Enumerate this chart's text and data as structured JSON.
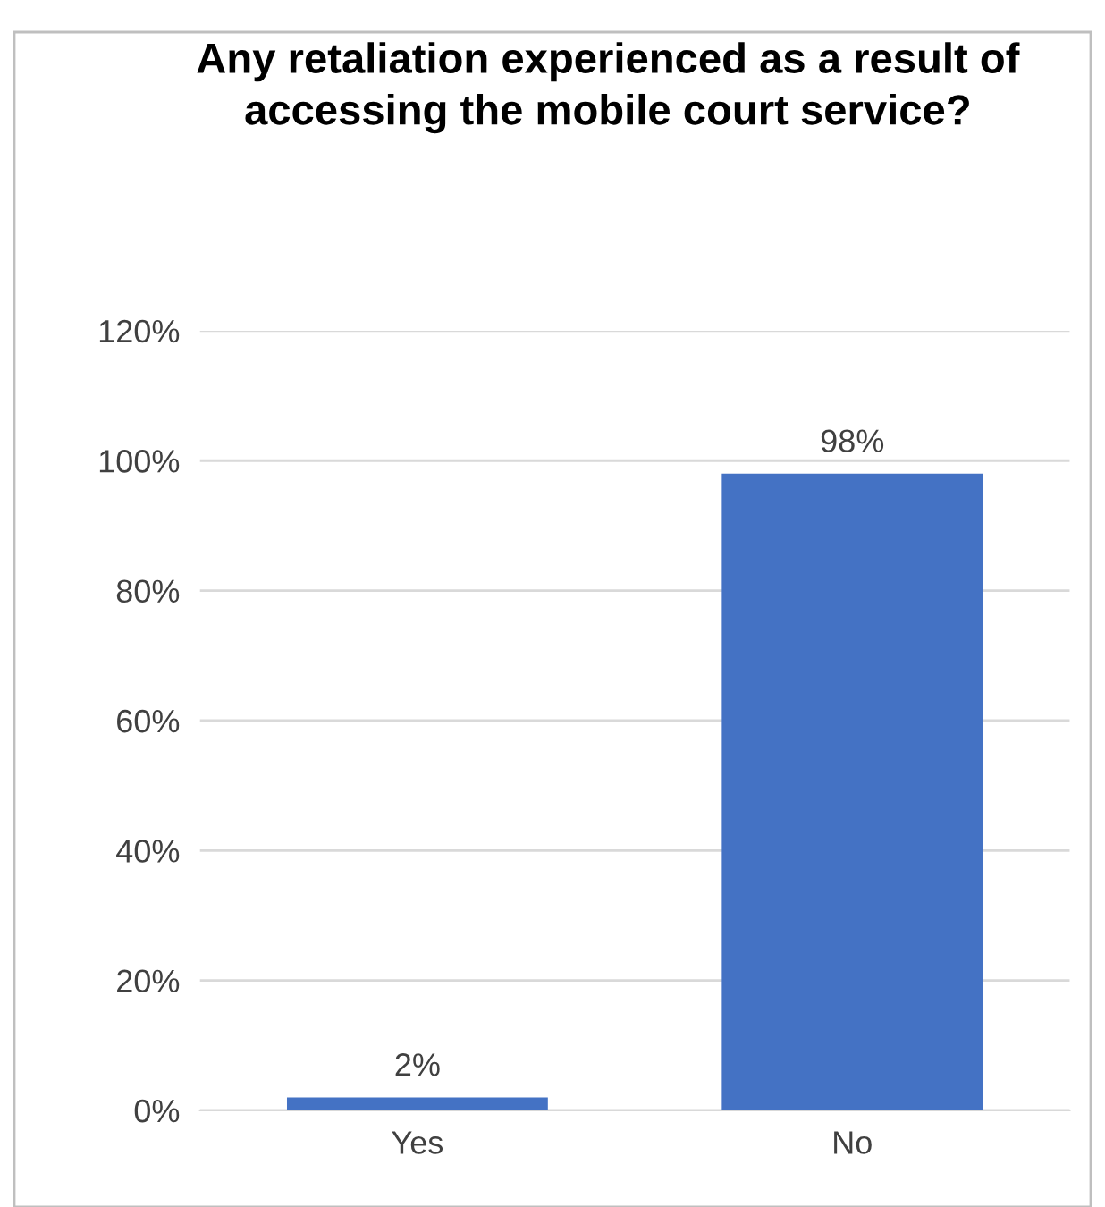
{
  "chart_data": {
    "type": "bar",
    "title": "Any retaliation experienced as a result of accessing the mobile court service?",
    "categories": [
      "Yes",
      "No"
    ],
    "values": [
      2,
      98
    ],
    "value_labels": [
      "2%",
      "98%"
    ],
    "color": "#4472c4",
    "ylim": [
      0,
      120
    ],
    "yticks": [
      {
        "value": 0,
        "label": "0%"
      },
      {
        "value": 20,
        "label": "20%"
      },
      {
        "value": 40,
        "label": "40%"
      },
      {
        "value": 60,
        "label": "60%"
      },
      {
        "value": 80,
        "label": "80%"
      },
      {
        "value": 100,
        "label": "100%"
      },
      {
        "value": 120,
        "label": "120%"
      }
    ],
    "grid": "y",
    "legend": false
  }
}
